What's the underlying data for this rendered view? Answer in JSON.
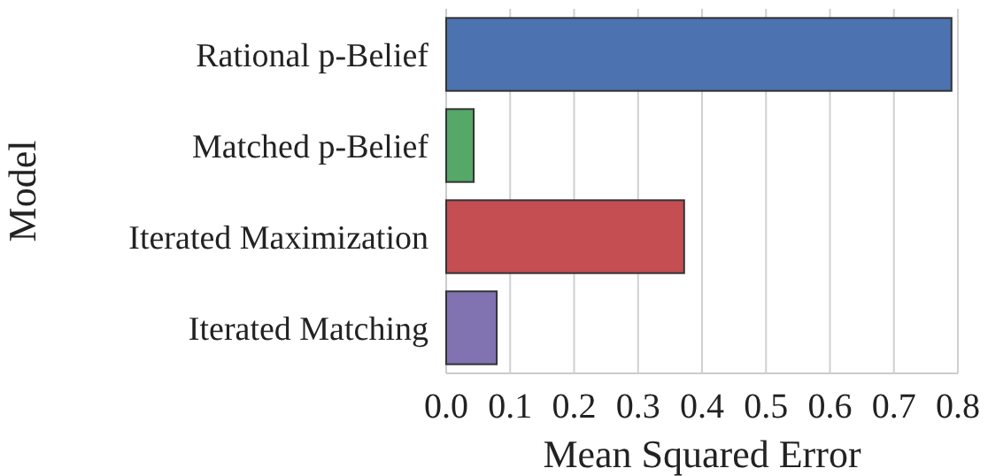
{
  "chart_data": {
    "type": "bar",
    "orientation": "horizontal",
    "xlabel": "Mean Squared Error",
    "ylabel": "Model",
    "categories": [
      "Rational p-Belief",
      "Matched p-Belief",
      "Iterated Maximization",
      "Iterated Matching"
    ],
    "values": [
      0.79,
      0.043,
      0.372,
      0.079
    ],
    "colors": [
      "#4c72b0",
      "#55a868",
      "#c44e52",
      "#8172b2"
    ],
    "xlim": [
      0,
      0.8
    ],
    "xticks": [
      {
        "value": 0,
        "label": "0.0"
      },
      0.1,
      0.2,
      0.3,
      0.4,
      0.5,
      0.6,
      0.7,
      0.8
    ],
    "grid": "x"
  }
}
